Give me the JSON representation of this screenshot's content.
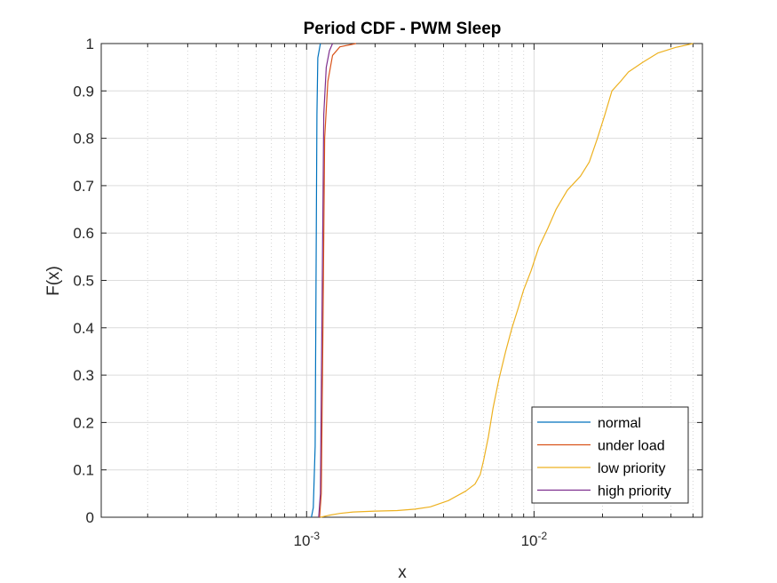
{
  "chart_data": {
    "type": "line",
    "title": "Period CDF - PWM Sleep",
    "xlabel": "x",
    "ylabel": "F(x)",
    "xscale": "log",
    "xlim": [
      0.000125,
      0.055
    ],
    "ylim": [
      0,
      1
    ],
    "grid": true,
    "minor_grid_x": true,
    "legend_position": "bottom-right",
    "x_tick_labels": [
      {
        "value": 0.001,
        "base": "10",
        "exp": "-3"
      },
      {
        "value": 0.01,
        "base": "10",
        "exp": "-2"
      }
    ],
    "y_ticks": [
      0,
      0.1,
      0.2,
      0.3,
      0.4,
      0.5,
      0.6,
      0.7,
      0.8,
      0.9,
      1
    ],
    "y_tick_labels": [
      "0",
      "0.1",
      "0.2",
      "0.3",
      "0.4",
      "0.5",
      "0.6",
      "0.7",
      "0.8",
      "0.9",
      "1"
    ],
    "series": [
      {
        "name": "normal",
        "color": "#0072BD",
        "points": [
          [
            0.00105,
            0
          ],
          [
            0.00107,
            0.02
          ],
          [
            0.00109,
            0.15
          ],
          [
            0.0011,
            0.5
          ],
          [
            0.00111,
            0.85
          ],
          [
            0.00112,
            0.97
          ],
          [
            0.00115,
            1.0
          ]
        ]
      },
      {
        "name": "under load",
        "color": "#D95319",
        "points": [
          [
            0.00114,
            0
          ],
          [
            0.00116,
            0.05
          ],
          [
            0.00118,
            0.4
          ],
          [
            0.0012,
            0.8
          ],
          [
            0.00124,
            0.92
          ],
          [
            0.0013,
            0.975
          ],
          [
            0.0014,
            0.993
          ],
          [
            0.00165,
            1.0
          ]
        ]
      },
      {
        "name": "low priority",
        "color": "#EDB120",
        "points": [
          [
            0.00115,
            0
          ],
          [
            0.00125,
            0.004
          ],
          [
            0.0014,
            0.008
          ],
          [
            0.0016,
            0.011
          ],
          [
            0.002,
            0.013
          ],
          [
            0.0025,
            0.014
          ],
          [
            0.003,
            0.017
          ],
          [
            0.0035,
            0.022
          ],
          [
            0.0042,
            0.035
          ],
          [
            0.005,
            0.055
          ],
          [
            0.0055,
            0.07
          ],
          [
            0.0058,
            0.09
          ],
          [
            0.006,
            0.12
          ],
          [
            0.0063,
            0.17
          ],
          [
            0.0066,
            0.23
          ],
          [
            0.007,
            0.29
          ],
          [
            0.0075,
            0.35
          ],
          [
            0.008,
            0.4
          ],
          [
            0.0085,
            0.44
          ],
          [
            0.009,
            0.48
          ],
          [
            0.0097,
            0.52
          ],
          [
            0.0105,
            0.57
          ],
          [
            0.0115,
            0.61
          ],
          [
            0.0125,
            0.65
          ],
          [
            0.014,
            0.69
          ],
          [
            0.016,
            0.72
          ],
          [
            0.0175,
            0.75
          ],
          [
            0.019,
            0.8
          ],
          [
            0.0205,
            0.85
          ],
          [
            0.022,
            0.9
          ],
          [
            0.024,
            0.92
          ],
          [
            0.026,
            0.94
          ],
          [
            0.03,
            0.96
          ],
          [
            0.035,
            0.98
          ],
          [
            0.042,
            0.992
          ],
          [
            0.05,
            1.0
          ]
        ]
      },
      {
        "name": "high priority",
        "color": "#7E2F8E",
        "points": [
          [
            0.00113,
            0
          ],
          [
            0.00115,
            0.05
          ],
          [
            0.00117,
            0.45
          ],
          [
            0.00119,
            0.85
          ],
          [
            0.00122,
            0.95
          ],
          [
            0.00126,
            0.985
          ],
          [
            0.0013,
            1.0
          ]
        ]
      }
    ]
  }
}
